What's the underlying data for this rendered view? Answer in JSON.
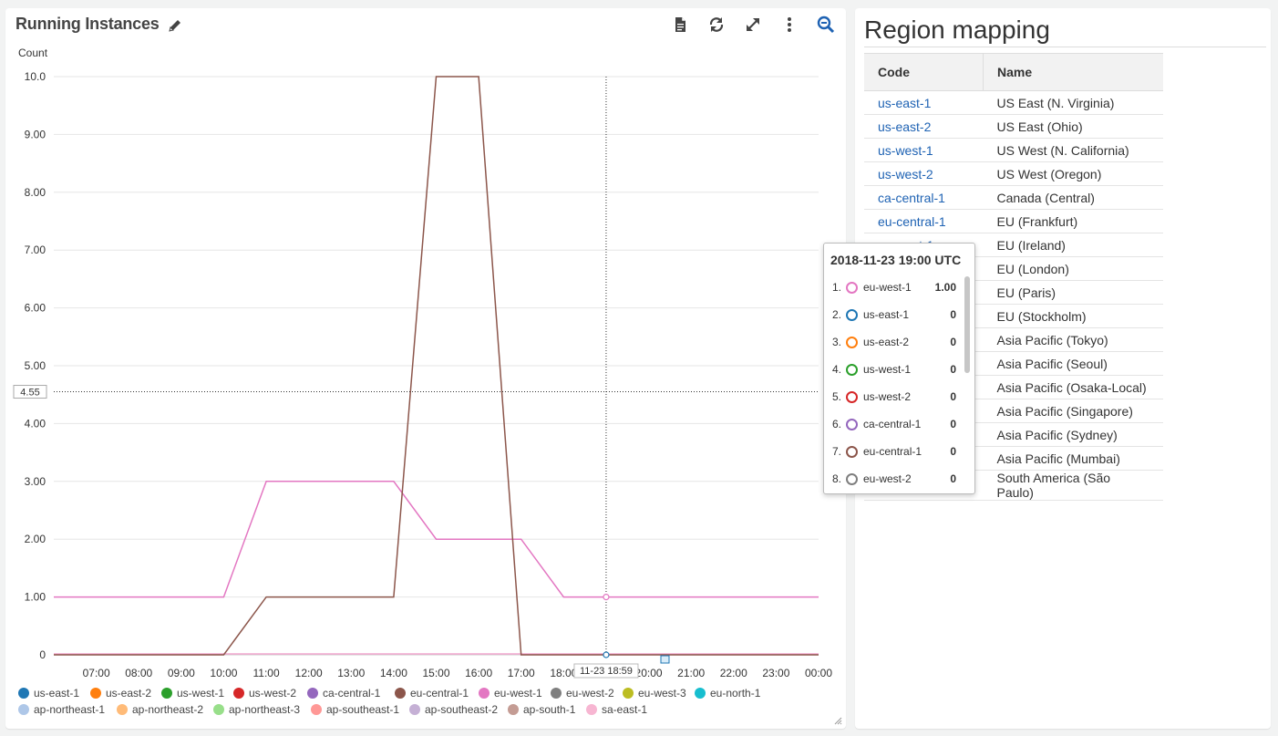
{
  "widget": {
    "title": "Running Instances",
    "toolbar": [
      "document-icon",
      "refresh-icon",
      "expand-icon",
      "more-icon",
      "zoom-out-icon"
    ]
  },
  "chart_data": {
    "type": "line",
    "ylabel": "Count",
    "ylim": [
      0,
      10
    ],
    "y_ticks": [
      "0",
      "1.00",
      "2.00",
      "3.00",
      "4.00",
      "5.00",
      "6.00",
      "7.00",
      "8.00",
      "9.00",
      "10.0"
    ],
    "x_ticks": [
      "07:00",
      "08:00",
      "09:00",
      "10:00",
      "11:00",
      "12:00",
      "13:00",
      "14:00",
      "15:00",
      "16:00",
      "17:00",
      "18:00",
      "19:00",
      "20:00",
      "21:00",
      "22:00",
      "23:00",
      "00:00"
    ],
    "x": [
      "06:00",
      "07:00",
      "08:00",
      "09:00",
      "10:00",
      "11:00",
      "12:00",
      "13:00",
      "14:00",
      "15:00",
      "16:00",
      "17:00",
      "18:00",
      "19:00",
      "20:00",
      "21:00",
      "22:00",
      "23:00",
      "00:00"
    ],
    "series": [
      {
        "name": "eu-west-1",
        "color": "#e377c2",
        "values": [
          1,
          1,
          1,
          1,
          1,
          3,
          3,
          3,
          3,
          2,
          2,
          2,
          1,
          1,
          1,
          1,
          1,
          1,
          1
        ]
      },
      {
        "name": "eu-central-1",
        "color": "#8c564b",
        "values": [
          0,
          0,
          0,
          0,
          0,
          1,
          1,
          1,
          1,
          10,
          10,
          0,
          0,
          0,
          0,
          0,
          0,
          0,
          0
        ]
      }
    ],
    "crosshair": {
      "y_value": "4.55",
      "x_value": "11-23 18:59"
    }
  },
  "legend": [
    {
      "name": "us-east-1",
      "color": "#1f77b4"
    },
    {
      "name": "us-east-2",
      "color": "#ff7f0e"
    },
    {
      "name": "us-west-1",
      "color": "#2ca02c"
    },
    {
      "name": "us-west-2",
      "color": "#d62728"
    },
    {
      "name": "ca-central-1",
      "color": "#9467bd"
    },
    {
      "name": "eu-central-1",
      "color": "#8c564b"
    },
    {
      "name": "eu-west-1",
      "color": "#e377c2"
    },
    {
      "name": "eu-west-2",
      "color": "#7f7f7f"
    },
    {
      "name": "eu-west-3",
      "color": "#bcbd22"
    },
    {
      "name": "eu-north-1",
      "color": "#17becf"
    },
    {
      "name": "ap-northeast-1",
      "color": "#aec7e8"
    },
    {
      "name": "ap-northeast-2",
      "color": "#ffbb78"
    },
    {
      "name": "ap-northeast-3",
      "color": "#98df8a"
    },
    {
      "name": "ap-southeast-1",
      "color": "#ff9896"
    },
    {
      "name": "ap-southeast-2",
      "color": "#c5b0d5"
    },
    {
      "name": "ap-south-1",
      "color": "#c49c94"
    },
    {
      "name": "sa-east-1",
      "color": "#f7b6d2"
    }
  ],
  "tooltip": {
    "title": "2018-11-23 19:00 UTC",
    "rows": [
      {
        "num": "1.",
        "name": "eu-west-1",
        "value": "1.00",
        "color": "#e377c2"
      },
      {
        "num": "2.",
        "name": "us-east-1",
        "value": "0",
        "color": "#1f77b4"
      },
      {
        "num": "3.",
        "name": "us-east-2",
        "value": "0",
        "color": "#ff7f0e"
      },
      {
        "num": "4.",
        "name": "us-west-1",
        "value": "0",
        "color": "#2ca02c"
      },
      {
        "num": "5.",
        "name": "us-west-2",
        "value": "0",
        "color": "#d62728"
      },
      {
        "num": "6.",
        "name": "ca-central-1",
        "value": "0",
        "color": "#9467bd"
      },
      {
        "num": "7.",
        "name": "eu-central-1",
        "value": "0",
        "color": "#8c564b"
      },
      {
        "num": "8.",
        "name": "eu-west-2",
        "value": "0",
        "color": "#7f7f7f"
      }
    ]
  },
  "region_mapping": {
    "title": "Region mapping",
    "headers": [
      "Code",
      "Name"
    ],
    "rows": [
      {
        "code": "us-east-1",
        "name": "US East (N. Virginia)"
      },
      {
        "code": "us-east-2",
        "name": "US East (Ohio)"
      },
      {
        "code": "us-west-1",
        "name": "US West (N. California)"
      },
      {
        "code": "us-west-2",
        "name": "US West (Oregon)"
      },
      {
        "code": "ca-central-1",
        "name": "Canada (Central)"
      },
      {
        "code": "eu-central-1",
        "name": "EU (Frankfurt)"
      },
      {
        "code": "eu-west-1",
        "name": "EU (Ireland)"
      },
      {
        "code": "",
        "name": "EU (London)"
      },
      {
        "code": "",
        "name": "EU (Paris)"
      },
      {
        "code": "",
        "name": "EU (Stockholm)"
      },
      {
        "code": "",
        "name": "Asia Pacific (Tokyo)"
      },
      {
        "code": "",
        "name": "Asia Pacific (Seoul)"
      },
      {
        "code": "",
        "name": "Asia Pacific (Osaka-Local)"
      },
      {
        "code": "",
        "name": "Asia Pacific (Singapore)"
      },
      {
        "code": "",
        "name": "Asia Pacific (Sydney)"
      },
      {
        "code": "",
        "name": "Asia Pacific (Mumbai)"
      },
      {
        "code": "",
        "name": "South America (São Paulo)"
      }
    ]
  }
}
